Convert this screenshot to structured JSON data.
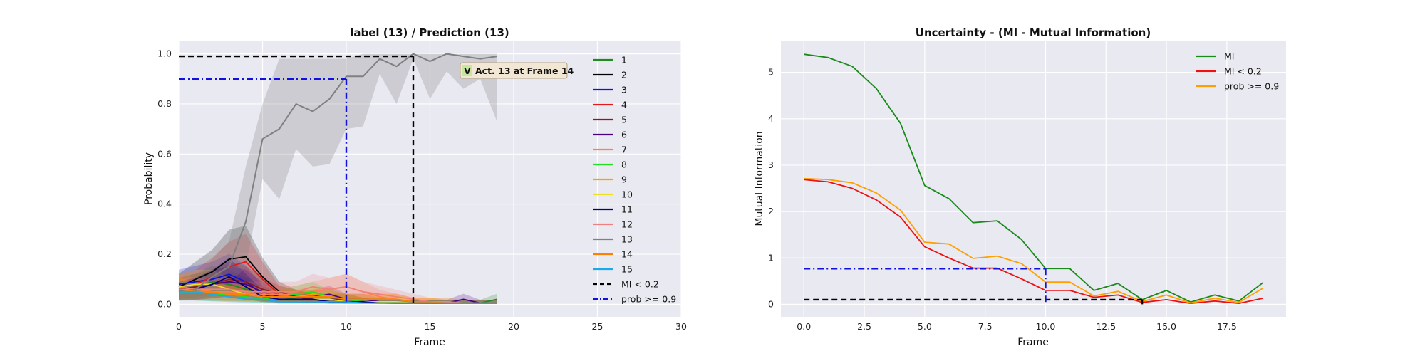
{
  "chart_data": [
    {
      "type": "line",
      "title": "label (13) / Prediction (13)",
      "xlabel": "Frame",
      "ylabel": "Probability",
      "xlim": [
        0,
        30
      ],
      "ylim": [
        -0.05,
        1.05
      ],
      "xticks": [
        "0",
        "5",
        "10",
        "15",
        "20",
        "25",
        "30"
      ],
      "yticks": [
        "0.0",
        "0.2",
        "0.4",
        "0.6",
        "0.8",
        "1.0"
      ],
      "grid": true,
      "legend_position": "right",
      "x": [
        0,
        1,
        2,
        3,
        4,
        5,
        6,
        7,
        8,
        9,
        10,
        11,
        12,
        13,
        14,
        15,
        16,
        17,
        18,
        19
      ],
      "series": [
        {
          "name": "1",
          "color": "#1f8a1f",
          "values": [
            0.06,
            0.07,
            0.09,
            0.08,
            0.06,
            0.04,
            0.03,
            0.02,
            0.02,
            0.02,
            0.01,
            0.01,
            0.01,
            0.005,
            0.005,
            0.005,
            0.005,
            0.005,
            0.005,
            0.02
          ]
        },
        {
          "name": "2",
          "color": "#000000",
          "values": [
            0.07,
            0.1,
            0.13,
            0.18,
            0.19,
            0.11,
            0.05,
            0.03,
            0.02,
            0.02,
            0.01,
            0.01,
            0.01,
            0.005,
            0.005,
            0.005,
            0.005,
            0.005,
            0.005,
            0.005
          ]
        },
        {
          "name": "3",
          "color": "#1010e0",
          "values": [
            0.08,
            0.09,
            0.1,
            0.12,
            0.09,
            0.04,
            0.02,
            0.02,
            0.02,
            0.01,
            0.01,
            0.01,
            0.005,
            0.005,
            0.005,
            0.005,
            0.005,
            0.005,
            0.005,
            0.005
          ]
        },
        {
          "name": "4",
          "color": "#e31a1c",
          "values": [
            0.07,
            0.08,
            0.11,
            0.15,
            0.17,
            0.1,
            0.04,
            0.03,
            0.02,
            0.02,
            0.02,
            0.01,
            0.01,
            0.005,
            0.005,
            0.005,
            0.005,
            0.005,
            0.005,
            0.005
          ]
        },
        {
          "name": "5",
          "color": "#8b1a1a",
          "values": [
            0.06,
            0.07,
            0.08,
            0.1,
            0.09,
            0.06,
            0.04,
            0.03,
            0.02,
            0.02,
            0.02,
            0.01,
            0.01,
            0.005,
            0.005,
            0.005,
            0.005,
            0.005,
            0.005,
            0.005
          ]
        },
        {
          "name": "6",
          "color": "#4b0082",
          "values": [
            0.05,
            0.06,
            0.08,
            0.09,
            0.08,
            0.05,
            0.03,
            0.03,
            0.03,
            0.04,
            0.02,
            0.02,
            0.01,
            0.005,
            0.005,
            0.005,
            0.005,
            0.02,
            0.005,
            0.005
          ]
        },
        {
          "name": "7",
          "color": "#ff7f50",
          "values": [
            0.07,
            0.06,
            0.05,
            0.05,
            0.04,
            0.04,
            0.04,
            0.04,
            0.05,
            0.06,
            0.07,
            0.05,
            0.03,
            0.02,
            0.01,
            0.01,
            0.005,
            0.005,
            0.005,
            0.005
          ]
        },
        {
          "name": "8",
          "color": "#22e022",
          "values": [
            0.05,
            0.05,
            0.04,
            0.04,
            0.03,
            0.02,
            0.03,
            0.04,
            0.05,
            0.03,
            0.02,
            0.01,
            0.01,
            0.005,
            0.005,
            0.005,
            0.005,
            0.005,
            0.005,
            0.005
          ]
        },
        {
          "name": "9",
          "color": "#ff9f00",
          "values": [
            0.06,
            0.05,
            0.05,
            0.04,
            0.04,
            0.03,
            0.03,
            0.03,
            0.04,
            0.03,
            0.02,
            0.02,
            0.02,
            0.02,
            0.01,
            0.01,
            0.01,
            0.005,
            0.005,
            0.005
          ]
        },
        {
          "name": "10",
          "color": "#f0e020",
          "values": [
            0.07,
            0.08,
            0.08,
            0.06,
            0.04,
            0.03,
            0.02,
            0.02,
            0.02,
            0.02,
            0.01,
            0.01,
            0.01,
            0.01,
            0.005,
            0.01,
            0.005,
            0.005,
            0.005,
            0.005
          ]
        },
        {
          "name": "11",
          "color": "#000080",
          "values": [
            0.05,
            0.06,
            0.08,
            0.11,
            0.07,
            0.03,
            0.02,
            0.02,
            0.02,
            0.01,
            0.01,
            0.01,
            0.005,
            0.005,
            0.005,
            0.005,
            0.005,
            0.005,
            0.005,
            0.005
          ]
        },
        {
          "name": "12",
          "color": "#f08080",
          "values": [
            0.06,
            0.06,
            0.06,
            0.06,
            0.05,
            0.05,
            0.05,
            0.05,
            0.07,
            0.06,
            0.07,
            0.05,
            0.04,
            0.03,
            0.02,
            0.01,
            0.01,
            0.005,
            0.005,
            0.005
          ]
        },
        {
          "name": "13",
          "color": "#808080",
          "values": [
            0.05,
            0.06,
            0.11,
            0.15,
            0.33,
            0.66,
            0.7,
            0.8,
            0.77,
            0.82,
            0.91,
            0.91,
            0.98,
            0.95,
            1.0,
            0.97,
            1.0,
            0.99,
            0.98,
            0.99
          ]
        },
        {
          "name": "14",
          "color": "#ff8000",
          "values": [
            0.06,
            0.05,
            0.05,
            0.04,
            0.04,
            0.03,
            0.03,
            0.03,
            0.03,
            0.03,
            0.02,
            0.02,
            0.02,
            0.02,
            0.01,
            0.01,
            0.005,
            0.005,
            0.005,
            0.005
          ]
        },
        {
          "name": "15",
          "color": "#1ea8e8",
          "values": [
            0.05,
            0.05,
            0.04,
            0.03,
            0.02,
            0.02,
            0.01,
            0.01,
            0.01,
            0.01,
            0.01,
            0.005,
            0.005,
            0.005,
            0.005,
            0.005,
            0.005,
            0.005,
            0.005,
            0.005
          ]
        }
      ],
      "band_13": {
        "lower": [
          0.03,
          0.04,
          0.06,
          0.08,
          0.15,
          0.5,
          0.42,
          0.62,
          0.55,
          0.56,
          0.7,
          0.71,
          0.92,
          0.8,
          0.98,
          0.82,
          0.93,
          0.86,
          0.9,
          0.73
        ],
        "upper": [
          0.08,
          0.1,
          0.18,
          0.25,
          0.55,
          0.8,
          0.98,
          0.98,
          0.98,
          0.98,
          0.98,
          1.0,
          1.0,
          1.0,
          1.0,
          1.0,
          1.0,
          1.0,
          1.0,
          1.0
        ]
      },
      "reference_lines": [
        {
          "name": "MI < 0.2",
          "color": "#000000",
          "style": "dashed",
          "horizontal": {
            "y": 0.99,
            "x_from": 0,
            "x_to": 14
          },
          "vertical": {
            "x": 14,
            "y_from": 0.99,
            "y_to": 0
          }
        },
        {
          "name": "prob >= 0.9",
          "color": "#1010e0",
          "style": "dashdot",
          "horizontal": {
            "y": 0.9,
            "x_from": 0,
            "x_to": 10
          },
          "vertical": {
            "x": 10,
            "y_from": 0.9,
            "y_to": 0
          }
        }
      ],
      "annotation": {
        "check": "V",
        "text": "Act. 13 at Frame 14"
      }
    },
    {
      "type": "line",
      "title": "Uncertainty - (MI - Mutual Information)",
      "xlabel": "Frame",
      "ylabel": "Mutual Information",
      "xlim": [
        -0.95,
        19.95
      ],
      "ylim": [
        -0.27,
        5.67
      ],
      "xticks": [
        "0.0",
        "2.5",
        "5.0",
        "7.5",
        "10.0",
        "12.5",
        "15.0",
        "17.5"
      ],
      "xtick_values": [
        0,
        2.5,
        5,
        7.5,
        10,
        12.5,
        15,
        17.5
      ],
      "yticks": [
        "0",
        "1",
        "2",
        "3",
        "4",
        "5"
      ],
      "ytick_values": [
        0,
        1,
        2,
        3,
        4,
        5
      ],
      "grid": true,
      "legend_position": "top-right",
      "x": [
        0,
        1,
        2,
        3,
        4,
        5,
        6,
        7,
        8,
        9,
        10,
        11,
        12,
        13,
        14,
        15,
        16,
        17,
        18,
        19
      ],
      "series": [
        {
          "name": "MI",
          "color": "#1a8a1a",
          "values": [
            5.39,
            5.32,
            5.13,
            4.65,
            3.9,
            2.56,
            2.28,
            1.76,
            1.8,
            1.4,
            0.77,
            0.77,
            0.3,
            0.45,
            0.1,
            0.3,
            0.05,
            0.2,
            0.07,
            0.47
          ]
        },
        {
          "name": "MI < 0.2",
          "color": "#ee1111",
          "values": [
            2.69,
            2.64,
            2.5,
            2.25,
            1.88,
            1.24,
            1.0,
            0.78,
            0.78,
            0.55,
            0.3,
            0.3,
            0.15,
            0.2,
            0.04,
            0.1,
            0.02,
            0.07,
            0.02,
            0.13
          ]
        },
        {
          "name": "prob >= 0.9",
          "color": "#ff9f00",
          "values": [
            2.71,
            2.69,
            2.62,
            2.4,
            2.03,
            1.34,
            1.3,
            0.99,
            1.04,
            0.88,
            0.48,
            0.48,
            0.18,
            0.28,
            0.06,
            0.2,
            0.03,
            0.13,
            0.04,
            0.35
          ]
        }
      ],
      "reference_lines": [
        {
          "color": "#000000",
          "style": "dashed",
          "horizontal": {
            "y": 0.1,
            "x_from": 0,
            "x_to": 14
          },
          "vertical": {
            "x": 14,
            "y_from": 0.1,
            "y_to": 0
          }
        },
        {
          "color": "#1010e0",
          "style": "dashdot",
          "horizontal": {
            "y": 0.77,
            "x_from": 0,
            "x_to": 10
          },
          "vertical": {
            "x": 10,
            "y_from": 0.77,
            "y_to": 0
          }
        }
      ]
    }
  ]
}
